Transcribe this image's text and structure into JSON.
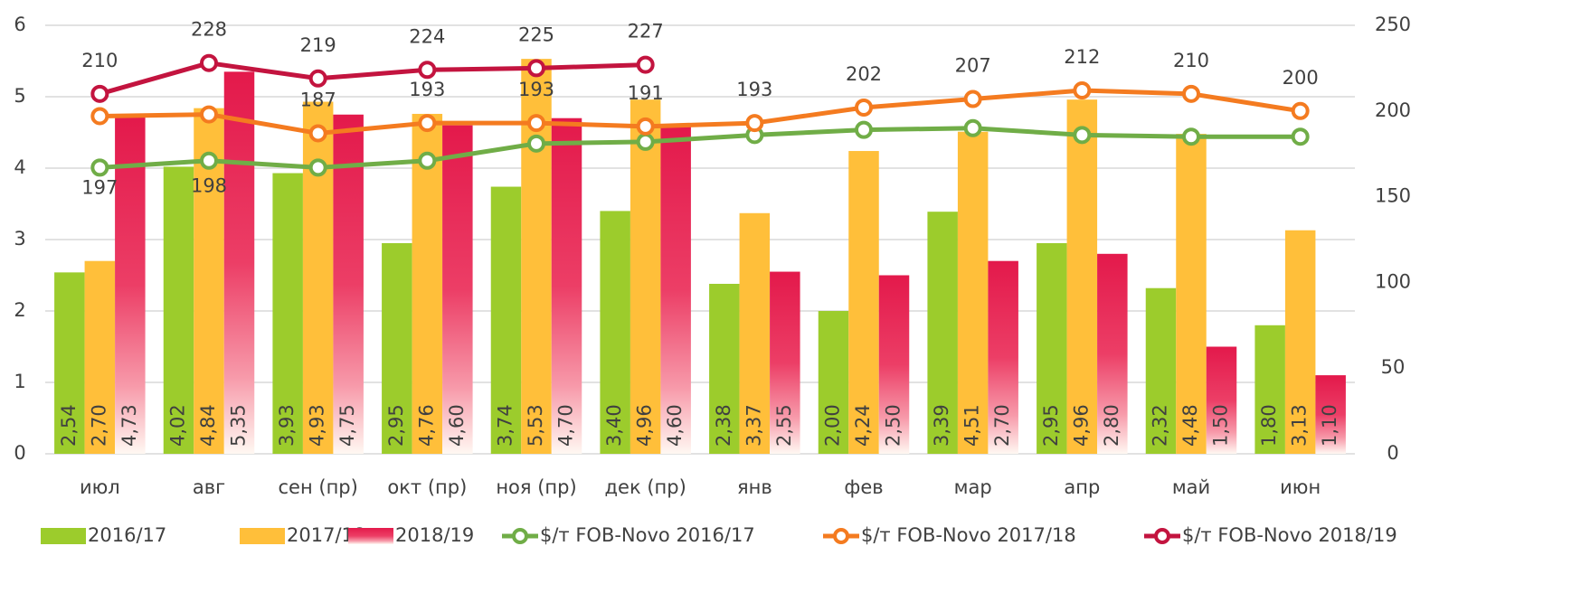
{
  "chart_data": {
    "type": "bar-line",
    "categories": [
      "июл",
      "авг",
      "сен (пр)",
      "окт (пр)",
      "ноя (пр)",
      "дек (пр)",
      "янв",
      "фев",
      "мар",
      "апр",
      "май",
      "июн"
    ],
    "series": [
      {
        "name": "2016/17",
        "type": "bar",
        "color": "#9ccc2c",
        "values": [
          2.54,
          4.02,
          3.93,
          2.95,
          3.74,
          3.4,
          2.38,
          2.0,
          3.39,
          2.95,
          2.32,
          1.8
        ],
        "value_labels": [
          "2,54",
          "4,02",
          "3,93",
          "2,95",
          "3,74",
          "3,40",
          "2,38",
          "2,00",
          "3,39",
          "2,95",
          "2,32",
          "1,80"
        ]
      },
      {
        "name": "2017/18",
        "type": "bar",
        "color": "#ffbf3a",
        "values": [
          2.7,
          4.84,
          4.93,
          4.76,
          5.53,
          4.96,
          3.37,
          4.24,
          4.51,
          4.96,
          4.48,
          3.13
        ],
        "value_labels": [
          "2,70",
          "4,84",
          "4,93",
          "4,76",
          "5,53",
          "4,96",
          "3,37",
          "4,24",
          "4,51",
          "4,96",
          "4,48",
          "3,13"
        ]
      },
      {
        "name": "2018/19",
        "type": "bar",
        "color": "#e3194b",
        "values": [
          4.73,
          5.35,
          4.75,
          4.6,
          4.7,
          4.6,
          2.55,
          2.5,
          2.7,
          2.8,
          1.5,
          1.1
        ],
        "value_labels": [
          "4,73",
          "5,35",
          "4,75",
          "4,60",
          "4,70",
          "4,60",
          "2,55",
          "2,50",
          "2,70",
          "2,80",
          "1,50",
          "1,10"
        ]
      },
      {
        "name": "$/т FOB-Novo 2016/17",
        "type": "line",
        "axis": "y2",
        "color": "#70ad47",
        "values": [
          167,
          171,
          167,
          171,
          181,
          182,
          186,
          189,
          190,
          186,
          185,
          185
        ]
      },
      {
        "name": "$/т FOB-Novo 2017/18",
        "type": "line",
        "axis": "y2",
        "color": "#f47b20",
        "values": [
          197,
          198,
          187,
          193,
          193,
          191,
          193,
          202,
          207,
          212,
          210,
          200
        ],
        "show_labels": true
      },
      {
        "name": "$/т FOB-Novo 2018/19",
        "type": "line",
        "axis": "y2",
        "color": "#c3143f",
        "values": [
          210,
          228,
          219,
          224,
          225,
          227,
          null,
          null,
          null,
          null,
          null,
          null
        ],
        "show_labels": true
      }
    ],
    "ylim": [
      0,
      6
    ],
    "yticks": [
      0,
      1,
      2,
      3,
      4,
      5,
      6
    ],
    "y2lim": [
      0,
      250
    ],
    "y2ticks": [
      0,
      50,
      100,
      150,
      200,
      250
    ],
    "grid": true,
    "legend": "bottom"
  }
}
